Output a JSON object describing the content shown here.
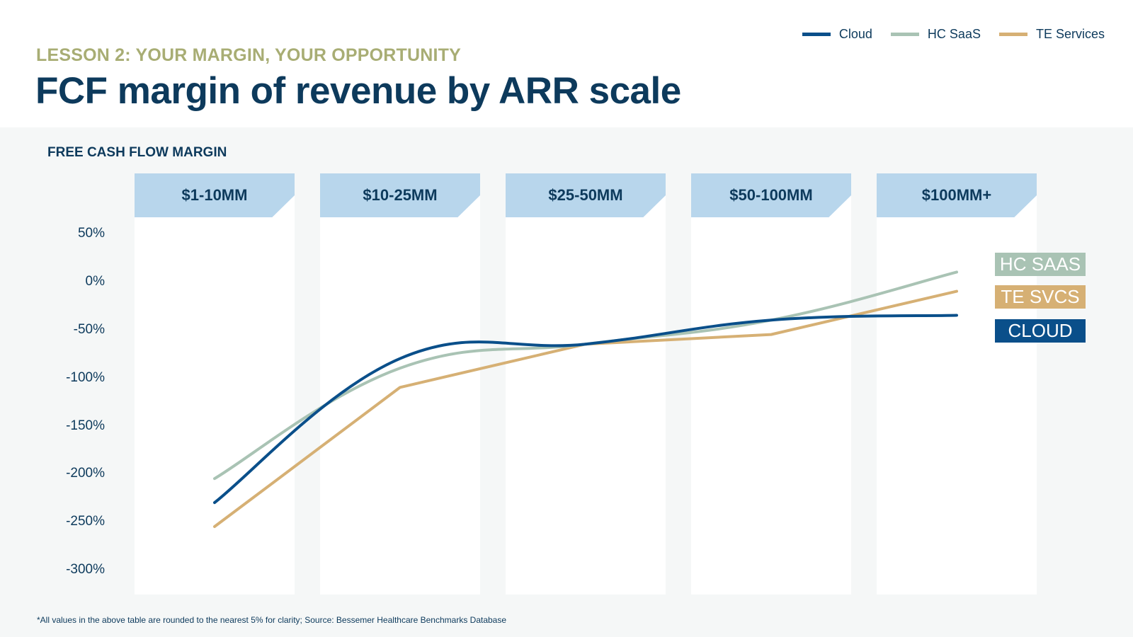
{
  "header": {
    "eyebrow": "LESSON 2: YOUR MARGIN, YOUR OPPORTUNITY",
    "title": "FCF margin of revenue by ARR scale"
  },
  "legend": [
    {
      "label": "Cloud",
      "color": "#0a4f8a"
    },
    {
      "label": "HC SaaS",
      "color": "#a9c3b4"
    },
    {
      "label": "TE Services",
      "color": "#d6b074"
    }
  ],
  "end_labels": [
    {
      "label": "HC SAAS",
      "color": "#a9c3b4"
    },
    {
      "label": "TE SVCS",
      "color": "#d6b074"
    },
    {
      "label": "CLOUD",
      "color": "#0a4f8a"
    }
  ],
  "footnote": "*All values in the above table are rounded to the nearest 5% for clarity; Source: Bessemer Healthcare Benchmarks Database",
  "chart_data": {
    "type": "line",
    "title": "FCF margin of revenue by ARR scale",
    "ylabel": "FREE CASH FLOW MARGIN",
    "xlabel": "",
    "categories": [
      "$1-10MM",
      "$10-25MM",
      "$25-50MM",
      "$50-100MM",
      "$100MM+"
    ],
    "yticks": [
      "50%",
      "0%",
      "-50%",
      "-100%",
      "-150%",
      "-200%",
      "-250%",
      "-300%"
    ],
    "ylim": [
      -300,
      50
    ],
    "grid": false,
    "legend_position": "top-right",
    "series": [
      {
        "name": "Cloud",
        "values": [
          -230,
          -80,
          -65,
          -40,
          -35
        ],
        "smooth": true
      },
      {
        "name": "HC SaaS",
        "values": [
          -205,
          -90,
          -65,
          -40,
          10
        ],
        "smooth": true
      },
      {
        "name": "TE Services",
        "values": [
          -255,
          -110,
          -65,
          -55,
          -10
        ],
        "smooth": false
      }
    ]
  }
}
